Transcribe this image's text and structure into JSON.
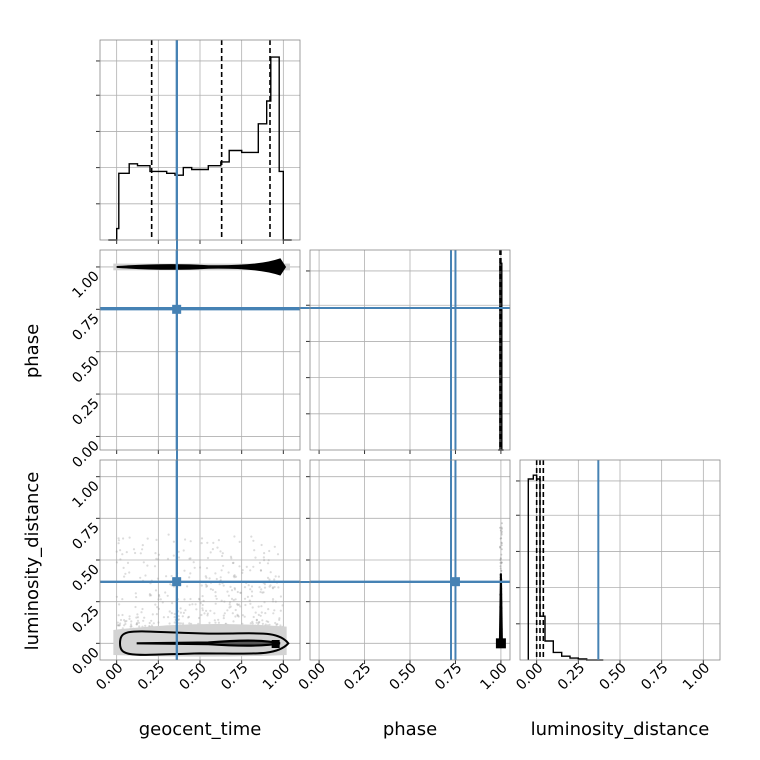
{
  "chart_data": {
    "type": "corner",
    "parameters": [
      "geocent_time",
      "phase",
      "luminosity_distance"
    ],
    "tick_labels": [
      "0.00",
      "0.25",
      "0.50",
      "0.75",
      "1.00"
    ],
    "grid": true,
    "colors": {
      "hist": "#000000",
      "truth": "#4682b4",
      "contour_fill": "#d3d3d3",
      "samples": "#9a9a9a"
    },
    "truths": {
      "geocent_time": 0.36,
      "phase": 0.75,
      "luminosity_distance": 0.37
    },
    "panels": [
      {
        "id": "hist-geocent_time",
        "type": "histogram",
        "xlabel": "geocent_time",
        "xlim": [
          -0.1,
          1.1
        ],
        "ylim": [
          0,
          1.05
        ],
        "quantiles": [
          0.21,
          0.63,
          0.92
        ],
        "bin_edges": [
          -0.05,
          0.0,
          0.0125,
          0.075,
          0.125,
          0.2,
          0.3,
          0.35,
          0.4,
          0.45,
          0.55,
          0.625,
          0.675,
          0.75,
          0.85,
          0.9,
          0.925,
          0.95,
          0.975,
          1.0,
          1.05
        ],
        "counts": [
          0.0,
          0.06,
          0.35,
          0.4,
          0.39,
          0.36,
          0.35,
          0.34,
          0.38,
          0.37,
          0.39,
          0.41,
          0.47,
          0.46,
          0.61,
          0.73,
          0.96,
          0.96,
          0.36,
          0.0
        ]
      },
      {
        "id": "2d-phase-vs-geocent_time",
        "type": "2d",
        "x": "geocent_time",
        "y": "phase",
        "xlim": [
          -0.1,
          1.1
        ],
        "ylim": [
          -0.08,
          1.1
        ],
        "truth": [
          0.36,
          0.75
        ]
      },
      {
        "id": "hist-phase",
        "type": "histogram",
        "xlabel": "phase",
        "xlim": [
          -0.05,
          1.05
        ],
        "ylim": [
          0,
          1.05
        ],
        "quantiles": [
          0.995,
          1.0
        ],
        "bin_edges": [
          0.985,
          0.995,
          1.005,
          1.015
        ],
        "counts": [
          0.0,
          0.98,
          0.0
        ]
      },
      {
        "id": "2d-luminosity_distance-vs-geocent_time",
        "type": "2d",
        "x": "geocent_time",
        "y": "luminosity_distance",
        "xlim": [
          -0.1,
          1.1
        ],
        "ylim": [
          -0.1,
          1.1
        ],
        "truth": [
          0.36,
          0.37
        ]
      },
      {
        "id": "2d-luminosity_distance-vs-phase",
        "type": "2d",
        "x": "phase",
        "y": "luminosity_distance",
        "xlim": [
          -0.05,
          1.05
        ],
        "ylim": [
          -0.1,
          1.1
        ],
        "truth": [
          0.75,
          0.37
        ]
      },
      {
        "id": "hist-luminosity_distance",
        "type": "histogram",
        "xlabel": "luminosity_distance",
        "xlim": [
          -0.1,
          1.1
        ],
        "ylim": [
          0,
          1.05
        ],
        "quantiles": [
          0.0,
          0.02,
          0.04
        ],
        "bin_edges": [
          -0.05,
          -0.02,
          0.0,
          0.02,
          0.05,
          0.1,
          0.15,
          0.2,
          0.25,
          0.3,
          0.4
        ],
        "counts": [
          0.95,
          0.97,
          0.95,
          0.23,
          0.1,
          0.04,
          0.02,
          0.01,
          0.005,
          0.0
        ]
      }
    ]
  }
}
